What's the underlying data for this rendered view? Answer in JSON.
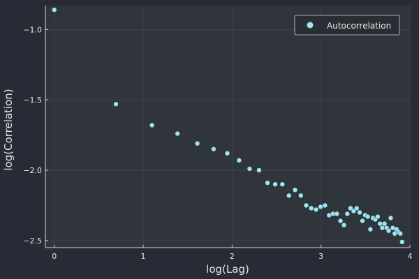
{
  "colors": {
    "background": "#282a36",
    "plot_area": "#30343b",
    "grid": "#454a55",
    "axis": "#d9d9d9",
    "text": "#e6e6e6",
    "marker": "#9be6f0",
    "legend_bg": "#2a2d33",
    "legend_border": "#d0d0d0"
  },
  "chart_data": {
    "type": "scatter",
    "title": "",
    "xlabel": "log(Lag)",
    "ylabel": "log(Correlation)",
    "xlim": [
      -0.1,
      4.0
    ],
    "ylim": [
      -2.55,
      -0.83
    ],
    "xticks": [
      0,
      1,
      2,
      3,
      4
    ],
    "xtick_labels": [
      "0",
      "1",
      "2",
      "3",
      "4"
    ],
    "yticks": [
      -1.0,
      -1.5,
      -2.0,
      -2.5
    ],
    "ytick_labels": [
      "−1.0",
      "−1.5",
      "−2.0",
      "−2.5"
    ],
    "grid": true,
    "legend": {
      "position": "top-right",
      "entries": [
        "Autocorrelation"
      ]
    },
    "series": [
      {
        "name": "Autocorrelation",
        "x": [
          0.0,
          0.693,
          1.099,
          1.386,
          1.609,
          1.792,
          1.946,
          2.079,
          2.197,
          2.303,
          2.398,
          2.485,
          2.565,
          2.639,
          2.708,
          2.773,
          2.833,
          2.89,
          2.944,
          2.996,
          3.045,
          3.091,
          3.135,
          3.178,
          3.219,
          3.258,
          3.296,
          3.332,
          3.367,
          3.401,
          3.434,
          3.466,
          3.497,
          3.526,
          3.555,
          3.584,
          3.611,
          3.638,
          3.664,
          3.689,
          3.714,
          3.738,
          3.761,
          3.784,
          3.807,
          3.829,
          3.85,
          3.871,
          3.892,
          3.912
        ],
        "y": [
          -0.86,
          -1.53,
          -1.68,
          -1.74,
          -1.81,
          -1.85,
          -1.88,
          -1.93,
          -1.99,
          -2.0,
          -2.09,
          -2.1,
          -2.1,
          -2.18,
          -2.14,
          -2.18,
          -2.25,
          -2.27,
          -2.28,
          -2.26,
          -2.25,
          -2.32,
          -2.31,
          -2.31,
          -2.36,
          -2.39,
          -2.31,
          -2.27,
          -2.29,
          -2.27,
          -2.3,
          -2.36,
          -2.32,
          -2.33,
          -2.42,
          -2.34,
          -2.35,
          -2.33,
          -2.38,
          -2.41,
          -2.38,
          -2.41,
          -2.43,
          -2.34,
          -2.41,
          -2.45,
          -2.42,
          -2.44,
          -2.45,
          -2.51
        ]
      }
    ]
  }
}
